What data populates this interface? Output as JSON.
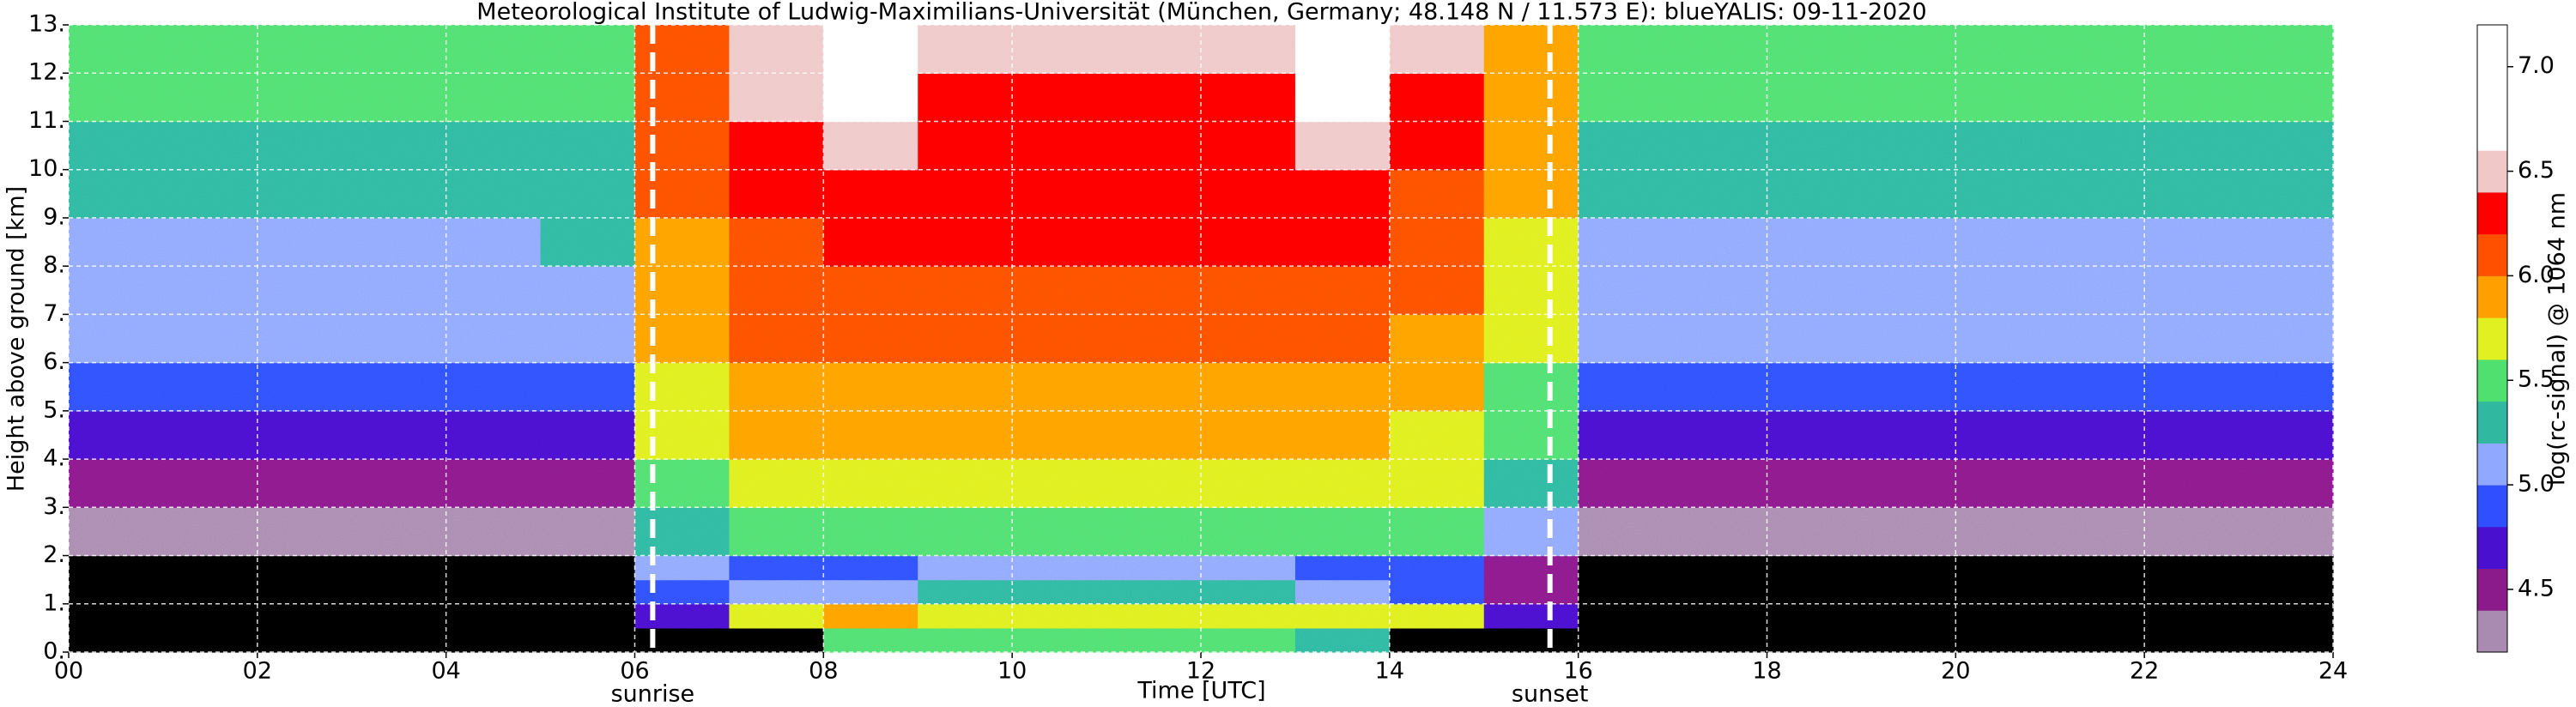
{
  "chart_data": {
    "type": "heatmap",
    "title": "Meteorological Institute of Ludwig-Maximilians-Universität (München, Germany; 48.148 N / 11.573 E):    blueYALIS: 09-11-2020",
    "xlabel": "Time [UTC]",
    "ylabel": "Height above ground [km]",
    "colorbar_label": "log(rc-signal) @ 1064 nm",
    "xlim": [
      0,
      24
    ],
    "ylim": [
      0,
      13
    ],
    "xticks": [
      {
        "value": 0,
        "label": "00"
      },
      {
        "value": 2,
        "label": "02"
      },
      {
        "value": 4,
        "label": "04"
      },
      {
        "value": 6,
        "label": "06"
      },
      {
        "value": 8,
        "label": "08"
      },
      {
        "value": 10,
        "label": "10"
      },
      {
        "value": 12,
        "label": "12"
      },
      {
        "value": 14,
        "label": "14"
      },
      {
        "value": 16,
        "label": "16"
      },
      {
        "value": 18,
        "label": "18"
      },
      {
        "value": 20,
        "label": "20"
      },
      {
        "value": 22,
        "label": "22"
      },
      {
        "value": 24,
        "label": "24"
      }
    ],
    "yticks": [
      {
        "value": 0,
        "label": "0."
      },
      {
        "value": 1,
        "label": "1."
      },
      {
        "value": 2,
        "label": "2."
      },
      {
        "value": 3,
        "label": "3."
      },
      {
        "value": 4,
        "label": "4."
      },
      {
        "value": 5,
        "label": "5."
      },
      {
        "value": 6,
        "label": "6."
      },
      {
        "value": 7,
        "label": "7."
      },
      {
        "value": 8,
        "label": "8."
      },
      {
        "value": 9,
        "label": "9."
      },
      {
        "value": 10,
        "label": "10."
      },
      {
        "value": 11,
        "label": "11."
      },
      {
        "value": 12,
        "label": "12."
      },
      {
        "value": 13,
        "label": "13."
      }
    ],
    "grid": true,
    "x_bins": [
      0,
      1,
      2,
      3,
      4,
      5,
      6,
      7,
      8,
      9,
      10,
      11,
      12,
      13,
      14,
      15,
      16,
      17,
      18,
      19,
      20,
      21,
      22,
      23,
      24
    ],
    "y_bins": [
      0,
      0.5,
      1,
      1.5,
      2,
      3,
      4,
      5,
      6,
      7,
      8,
      9,
      10,
      11,
      12,
      13
    ],
    "z": [
      [
        4.0,
        4.0,
        4.0,
        4.0,
        4.3,
        4.5,
        4.7,
        4.9,
        5.0,
        5.1,
        5.15,
        5.25,
        5.3,
        5.4,
        5.5
      ],
      [
        4.0,
        4.0,
        4.0,
        4.0,
        4.3,
        4.5,
        4.7,
        4.9,
        5.0,
        5.1,
        5.15,
        5.25,
        5.3,
        5.4,
        5.5
      ],
      [
        4.0,
        4.0,
        4.0,
        4.0,
        4.3,
        4.5,
        4.7,
        4.9,
        5.0,
        5.1,
        5.15,
        5.25,
        5.3,
        5.4,
        5.5
      ],
      [
        4.0,
        4.0,
        4.0,
        4.0,
        4.3,
        4.5,
        4.7,
        4.9,
        5.0,
        5.1,
        5.15,
        5.25,
        5.3,
        5.4,
        5.5
      ],
      [
        4.0,
        4.0,
        4.0,
        4.0,
        4.3,
        4.5,
        4.7,
        4.9,
        5.0,
        5.1,
        5.15,
        5.25,
        5.3,
        5.4,
        5.5
      ],
      [
        4.0,
        4.0,
        4.0,
        4.0,
        4.3,
        4.5,
        4.7,
        4.9,
        5.0,
        5.1,
        5.2,
        5.3,
        5.35,
        5.45,
        5.5
      ],
      [
        4.0,
        4.6,
        4.9,
        5.0,
        5.3,
        5.5,
        5.6,
        5.7,
        5.8,
        5.9,
        5.95,
        6.0,
        6.05,
        6.1,
        6.15
      ],
      [
        4.0,
        5.7,
        5.0,
        4.9,
        5.5,
        5.7,
        5.8,
        5.9,
        6.0,
        6.05,
        6.1,
        6.2,
        6.3,
        6.4,
        6.45
      ],
      [
        5.5,
        5.8,
        5.1,
        4.9,
        5.5,
        5.7,
        5.8,
        5.9,
        6.0,
        6.1,
        6.2,
        6.3,
        6.5,
        6.7,
        6.7
      ],
      [
        5.5,
        5.6,
        5.2,
        5.0,
        5.5,
        5.7,
        5.8,
        5.9,
        6.0,
        6.1,
        6.2,
        6.25,
        6.3,
        6.35,
        6.4
      ],
      [
        5.5,
        5.6,
        5.2,
        5.0,
        5.5,
        5.7,
        5.8,
        5.9,
        6.0,
        6.1,
        6.2,
        6.25,
        6.3,
        6.35,
        6.4
      ],
      [
        5.5,
        5.6,
        5.2,
        5.0,
        5.5,
        5.7,
        5.8,
        5.9,
        6.0,
        6.1,
        6.2,
        6.25,
        6.3,
        6.35,
        6.4
      ],
      [
        5.5,
        5.6,
        5.2,
        5.0,
        5.5,
        5.7,
        5.8,
        5.9,
        6.0,
        6.1,
        6.2,
        6.25,
        6.3,
        6.35,
        6.4
      ],
      [
        5.3,
        5.7,
        5.1,
        4.9,
        5.5,
        5.7,
        5.8,
        5.9,
        6.0,
        6.1,
        6.2,
        6.3,
        6.5,
        6.7,
        6.7
      ],
      [
        4.0,
        5.6,
        4.9,
        4.9,
        5.4,
        5.6,
        5.7,
        5.8,
        5.9,
        6.0,
        6.05,
        6.15,
        6.25,
        6.35,
        6.4
      ],
      [
        4.0,
        4.7,
        4.5,
        4.5,
        5.0,
        5.3,
        5.4,
        5.5,
        5.6,
        5.7,
        5.75,
        5.8,
        5.85,
        5.9,
        5.95
      ],
      [
        4.0,
        4.0,
        4.0,
        4.0,
        4.3,
        4.5,
        4.7,
        4.9,
        5.0,
        5.1,
        5.15,
        5.25,
        5.3,
        5.4,
        5.5
      ],
      [
        4.0,
        4.0,
        4.0,
        4.0,
        4.3,
        4.5,
        4.7,
        4.9,
        5.0,
        5.1,
        5.15,
        5.25,
        5.3,
        5.4,
        5.5
      ],
      [
        4.0,
        4.0,
        4.0,
        4.0,
        4.3,
        4.5,
        4.7,
        4.9,
        5.0,
        5.1,
        5.15,
        5.25,
        5.3,
        5.4,
        5.5
      ],
      [
        4.0,
        4.0,
        4.0,
        4.0,
        4.3,
        4.5,
        4.7,
        4.9,
        5.0,
        5.1,
        5.15,
        5.25,
        5.3,
        5.4,
        5.5
      ],
      [
        4.0,
        4.0,
        4.0,
        4.0,
        4.3,
        4.5,
        4.7,
        4.9,
        5.0,
        5.1,
        5.15,
        5.25,
        5.3,
        5.4,
        5.5
      ],
      [
        4.0,
        4.0,
        4.0,
        4.0,
        4.3,
        4.5,
        4.7,
        4.9,
        5.0,
        5.1,
        5.15,
        5.25,
        5.3,
        5.4,
        5.5
      ],
      [
        4.0,
        4.0,
        4.0,
        4.0,
        4.3,
        4.5,
        4.7,
        4.9,
        5.0,
        5.1,
        5.15,
        5.25,
        5.3,
        5.4,
        5.5
      ],
      [
        4.0,
        4.0,
        4.0,
        4.0,
        4.3,
        4.5,
        4.7,
        4.9,
        5.0,
        5.1,
        5.15,
        5.25,
        5.3,
        5.4,
        5.5
      ]
    ],
    "clim": [
      4.2,
      7.2
    ],
    "colorbar_bounds": [
      4.2,
      4.4,
      4.6,
      4.8,
      5.0,
      5.2,
      5.4,
      5.6,
      5.8,
      6.0,
      6.2,
      6.4,
      6.6,
      7.2
    ],
    "colorbar_colors": [
      "#a98ab0",
      "#8b1a8b",
      "#4a10d0",
      "#3050ff",
      "#90a8ff",
      "#30b8a0",
      "#50e070",
      "#e0f020",
      "#ffa000",
      "#ff5000",
      "#ff0000",
      "#f0c8c8",
      "#ffffff"
    ],
    "under_color": "#000000",
    "colorbar_ticks": [
      4.5,
      {
        "value": 5,
        "label": "5.0"
      },
      5.5,
      {
        "value": 6,
        "label": "6.0"
      },
      6.5,
      {
        "value": 7,
        "label": "7.0"
      }
    ],
    "annotations": [
      {
        "x": 6.19,
        "label": "sunrise"
      },
      {
        "x": 15.7,
        "label": "sunset"
      }
    ]
  }
}
